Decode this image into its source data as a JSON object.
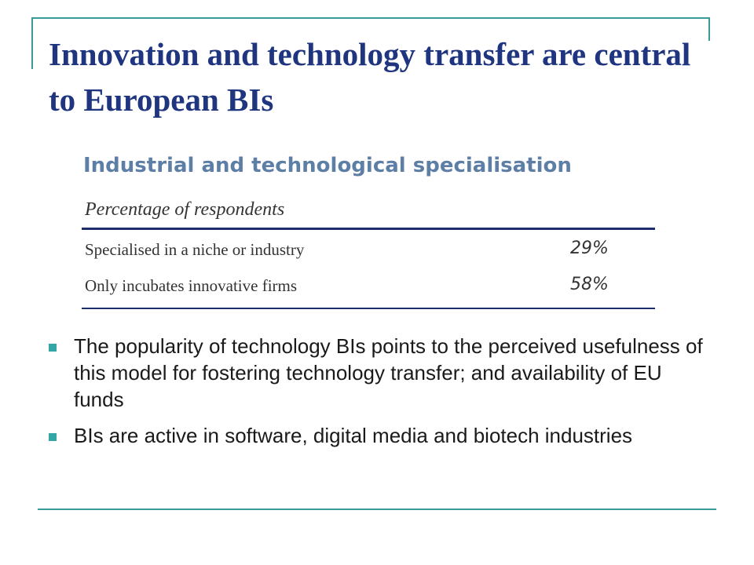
{
  "slide": {
    "title": "Innovation and technology transfer are central to European BIs",
    "accent_color": "#3a9a97",
    "title_color": "#1f3580"
  },
  "figure": {
    "title": "Industrial and technological specialisation",
    "subtitle": "Percentage of respondents",
    "rows": [
      {
        "label": "Specialised in a niche or industry",
        "value": "29%"
      },
      {
        "label": "Only incubates innovative firms",
        "value": "58%"
      }
    ]
  },
  "bullets": [
    {
      "text": "The popularity of technology BIs points to the perceived usefulness of this model for fostering technology transfer; and availability of EU funds"
    },
    {
      "text": "BIs are active in software, digital media and biotech industries"
    }
  ]
}
